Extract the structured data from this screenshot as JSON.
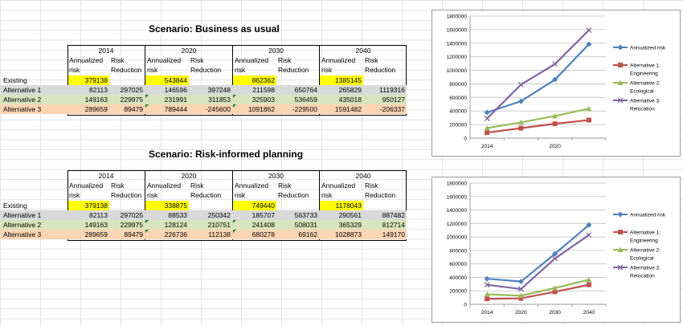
{
  "scenarios": [
    {
      "title": "Scenario: Business as usual",
      "years": [
        "2014",
        "2020",
        "2030",
        "2040"
      ],
      "col_labels": {
        "risk_1": "Annualized",
        "risk_2": "risk",
        "red_1": "Risk",
        "red_2": "Reduction"
      },
      "existing": {
        "label": "Existing",
        "values": [
          "379138",
          "543844",
          "862362",
          "1385145"
        ]
      },
      "alternatives": [
        {
          "label": "Alternative 1",
          "values": [
            "82113",
            "297025",
            "146596",
            "397248",
            "211598",
            "650764",
            "265829",
            "1119316"
          ]
        },
        {
          "label": "Alternative 2",
          "values": [
            "149163",
            "229975",
            "231991",
            "311853",
            "325903",
            "536459",
            "435018",
            "950127"
          ]
        },
        {
          "label": "Alternative 3",
          "values": [
            "289659",
            "89479",
            "789444",
            "-245600",
            "1091862",
            "-229500",
            "1591482",
            "-206337"
          ]
        }
      ]
    },
    {
      "title": "Scenario: Risk-informed planning",
      "years": [
        "2014",
        "2020",
        "2030",
        "2040"
      ],
      "col_labels": {
        "risk_1": "Annualized",
        "risk_2": "risk",
        "red_1": "Risk",
        "red_2": "Reduction"
      },
      "existing": {
        "label": "Existing",
        "values": [
          "379138",
          "338875",
          "749440",
          "1178043"
        ]
      },
      "alternatives": [
        {
          "label": "Alternative 1",
          "values": [
            "82113",
            "297025",
            "88533",
            "250342",
            "185707",
            "563733",
            "290561",
            "887482"
          ]
        },
        {
          "label": "Alternative 2",
          "values": [
            "149163",
            "229975",
            "128124",
            "210751",
            "241408",
            "508031",
            "365329",
            "812714"
          ]
        },
        {
          "label": "Alternative 3",
          "values": [
            "289659",
            "89479",
            "226736",
            "112138",
            "680278",
            "69162",
            "1028873",
            "149170"
          ]
        }
      ]
    }
  ],
  "chart_data": [
    {
      "type": "line",
      "x": [
        2014,
        2020,
        2030,
        2040
      ],
      "x_tick_labels": [
        "2014",
        "",
        "2020",
        ""
      ],
      "ylim": [
        0,
        1800000
      ],
      "y_ticks": [
        "0",
        "200000",
        "400000",
        "600000",
        "800000",
        "1000000",
        "1200000",
        "1400000",
        "1600000",
        "1800000"
      ],
      "grid": true,
      "legend_position": "right",
      "series": [
        {
          "name": "Annualized risk",
          "color": "#4f81bd",
          "marker": "diamond",
          "values": [
            379138,
            543844,
            862362,
            1385145
          ]
        },
        {
          "name": "Alternative 1: Engineering",
          "legend_lines": [
            "Alternative 1:",
            "Engineering"
          ],
          "color": "#c0504d",
          "marker": "square",
          "values": [
            82113,
            146596,
            211598,
            265829
          ]
        },
        {
          "name": "Alternative 2: Ecological",
          "legend_lines": [
            "Alternative 2:",
            "Ecological"
          ],
          "color": "#9bbb59",
          "marker": "triangle",
          "values": [
            149163,
            231991,
            325903,
            435018
          ]
        },
        {
          "name": "Alternative 3: Relocation",
          "legend_lines": [
            "Alternative 3:",
            "Relocation"
          ],
          "color": "#8064a2",
          "marker": "x",
          "values": [
            289659,
            789444,
            1091862,
            1591482
          ]
        }
      ]
    },
    {
      "type": "line",
      "x": [
        2014,
        2020,
        2030,
        2040
      ],
      "x_tick_labels": [
        "2014",
        "2020",
        "2030",
        "2040"
      ],
      "ylim": [
        0,
        1800000
      ],
      "y_ticks": [
        "0",
        "200000",
        "400000",
        "600000",
        "800000",
        "1000000",
        "1200000",
        "1400000",
        "1600000",
        "1800000"
      ],
      "grid": true,
      "legend_position": "right",
      "series": [
        {
          "name": "Annualized risk",
          "color": "#4f81bd",
          "marker": "diamond",
          "values": [
            379138,
            338875,
            749440,
            1178043
          ]
        },
        {
          "name": "Alternative 1: Engineering",
          "legend_lines": [
            "Alternative 1:",
            "Engineering"
          ],
          "color": "#c0504d",
          "marker": "square",
          "values": [
            82113,
            88533,
            185707,
            290561
          ]
        },
        {
          "name": "Alternative 2: Ecological",
          "legend_lines": [
            "Alternative 2:",
            "Ecological"
          ],
          "color": "#9bbb59",
          "marker": "triangle",
          "values": [
            149163,
            128124,
            241408,
            365329
          ]
        },
        {
          "name": "Alternative 3: Relocation",
          "legend_lines": [
            "Alternative 3:",
            "Relocation"
          ],
          "color": "#8064a2",
          "marker": "x",
          "values": [
            289659,
            226736,
            680278,
            1028873
          ]
        }
      ]
    }
  ]
}
